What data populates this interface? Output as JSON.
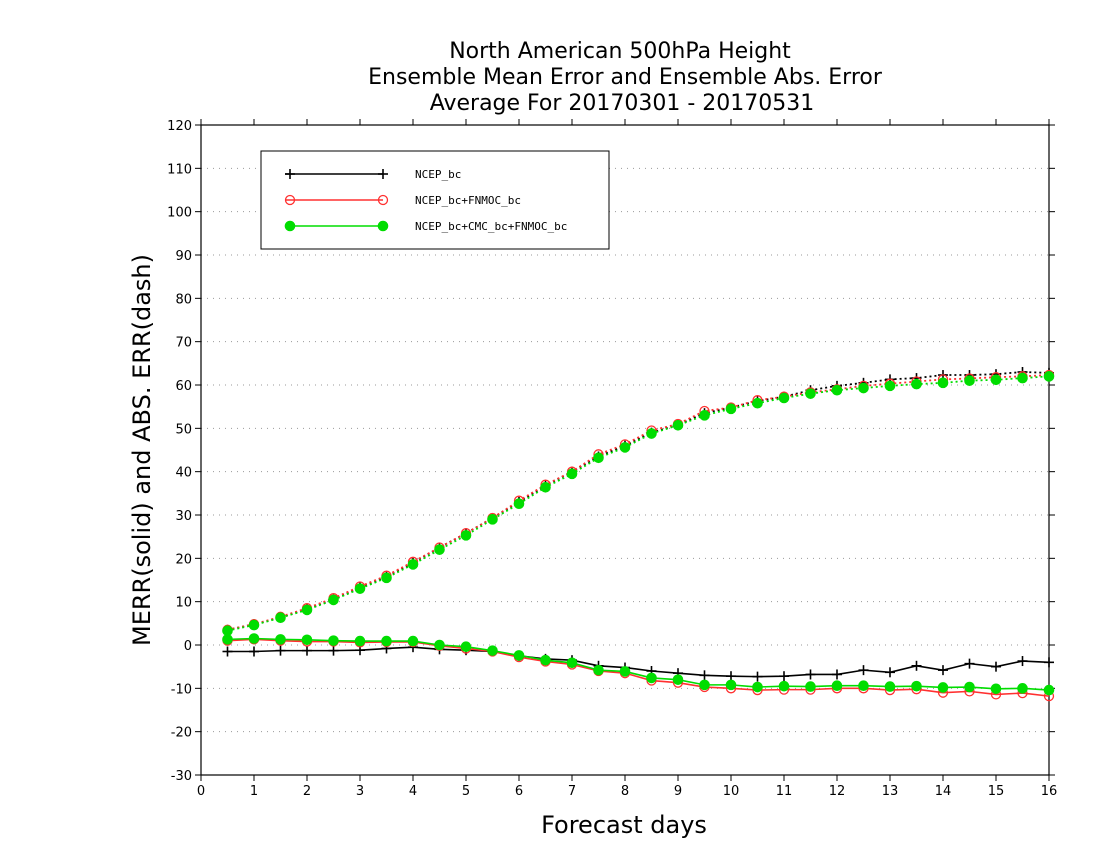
{
  "chart_data": {
    "type": "line",
    "title": [
      "North American 500hPa Height",
      "Ensemble Mean Error and Ensemble Abs. Error",
      "Average For 20170301 - 20170531"
    ],
    "xlabel": "Forecast days",
    "ylabel": "MERR(solid) and ABS. ERR(dash)",
    "xlim": [
      0,
      16
    ],
    "ylim": [
      -30,
      120
    ],
    "xticks": [
      0,
      1,
      2,
      3,
      4,
      5,
      6,
      7,
      8,
      9,
      10,
      11,
      12,
      13,
      14,
      15,
      16
    ],
    "yticks": [
      -30,
      -20,
      -10,
      0,
      10,
      20,
      30,
      40,
      50,
      60,
      70,
      80,
      90,
      100,
      110,
      120
    ],
    "grid": "horizontal dotted",
    "legend_position": "top-left",
    "x": [
      0.5,
      1,
      1.5,
      2,
      2.5,
      3,
      3.5,
      4,
      4.5,
      5,
      5.5,
      6,
      6.5,
      7,
      7.5,
      8,
      8.5,
      9,
      9.5,
      10,
      10.5,
      11,
      11.5,
      12,
      12.5,
      13,
      13.5,
      14,
      14.5,
      15,
      15.5,
      16
    ],
    "series": [
      {
        "name": "NCEP_bc",
        "color": "#000000",
        "marker": "plus",
        "merr": [
          -1.5,
          -1.5,
          -1.3,
          -1.3,
          -1.3,
          -1.2,
          -0.8,
          -0.5,
          -1.0,
          -1.2,
          -1.5,
          -2.5,
          -3.2,
          -3.5,
          -4.8,
          -5.2,
          -6.0,
          -6.5,
          -7.0,
          -7.2,
          -7.3,
          -7.2,
          -6.8,
          -6.8,
          -5.8,
          -6.3,
          -4.8,
          -5.8,
          -4.3,
          -5.0,
          -3.7,
          -4.0
        ],
        "abs_err": [
          3.5,
          4.8,
          6.3,
          8.3,
          10.5,
          13.3,
          15.8,
          19.0,
          22.5,
          25.8,
          29.3,
          33.0,
          36.8,
          40.0,
          43.5,
          46.0,
          49.0,
          50.8,
          53.5,
          54.8,
          56.3,
          57.3,
          58.8,
          59.8,
          60.5,
          61.3,
          61.6,
          62.3,
          62.3,
          62.5,
          63.0,
          62.8
        ]
      },
      {
        "name": "NCEP_bc+FNMOC_bc",
        "color": "#ff3030",
        "marker": "open-circle",
        "merr": [
          1.0,
          1.3,
          1.0,
          0.8,
          0.8,
          0.6,
          0.7,
          0.7,
          -0.2,
          -0.8,
          -1.5,
          -2.8,
          -3.8,
          -4.5,
          -6.0,
          -6.5,
          -8.2,
          -8.7,
          -9.7,
          -10.0,
          -10.4,
          -10.3,
          -10.3,
          -10.0,
          -10.0,
          -10.4,
          -10.2,
          -11.0,
          -10.7,
          -11.4,
          -11.1,
          -11.8
        ],
        "abs_err": [
          3.5,
          4.8,
          6.5,
          8.5,
          10.8,
          13.5,
          16.0,
          19.2,
          22.5,
          25.8,
          29.3,
          33.3,
          37.0,
          40.0,
          44.0,
          46.3,
          49.5,
          51.0,
          54.0,
          54.8,
          56.5,
          57.3,
          58.3,
          59.0,
          59.8,
          60.3,
          60.8,
          61.3,
          61.5,
          61.8,
          62.0,
          62.3
        ]
      },
      {
        "name": "NCEP_bc+CMC_bc+FNMOC_bc",
        "color": "#00dd00",
        "marker": "filled-circle",
        "merr": [
          1.3,
          1.5,
          1.3,
          1.2,
          1.0,
          0.9,
          0.9,
          0.9,
          0.0,
          -0.4,
          -1.3,
          -2.4,
          -3.5,
          -4.1,
          -5.8,
          -6.1,
          -7.6,
          -8.0,
          -9.2,
          -9.2,
          -9.7,
          -9.5,
          -9.6,
          -9.4,
          -9.4,
          -9.6,
          -9.5,
          -9.8,
          -9.7,
          -10.1,
          -10.0,
          -10.4
        ],
        "abs_err": [
          3.3,
          4.6,
          6.3,
          8.1,
          10.4,
          13.0,
          15.5,
          18.6,
          22.0,
          25.3,
          29.0,
          32.6,
          36.4,
          39.5,
          43.2,
          45.6,
          48.8,
          50.7,
          53.0,
          54.5,
          55.8,
          57.0,
          58.0,
          58.8,
          59.3,
          59.8,
          60.2,
          60.5,
          61.0,
          61.2,
          61.6,
          62.0
        ]
      }
    ]
  }
}
